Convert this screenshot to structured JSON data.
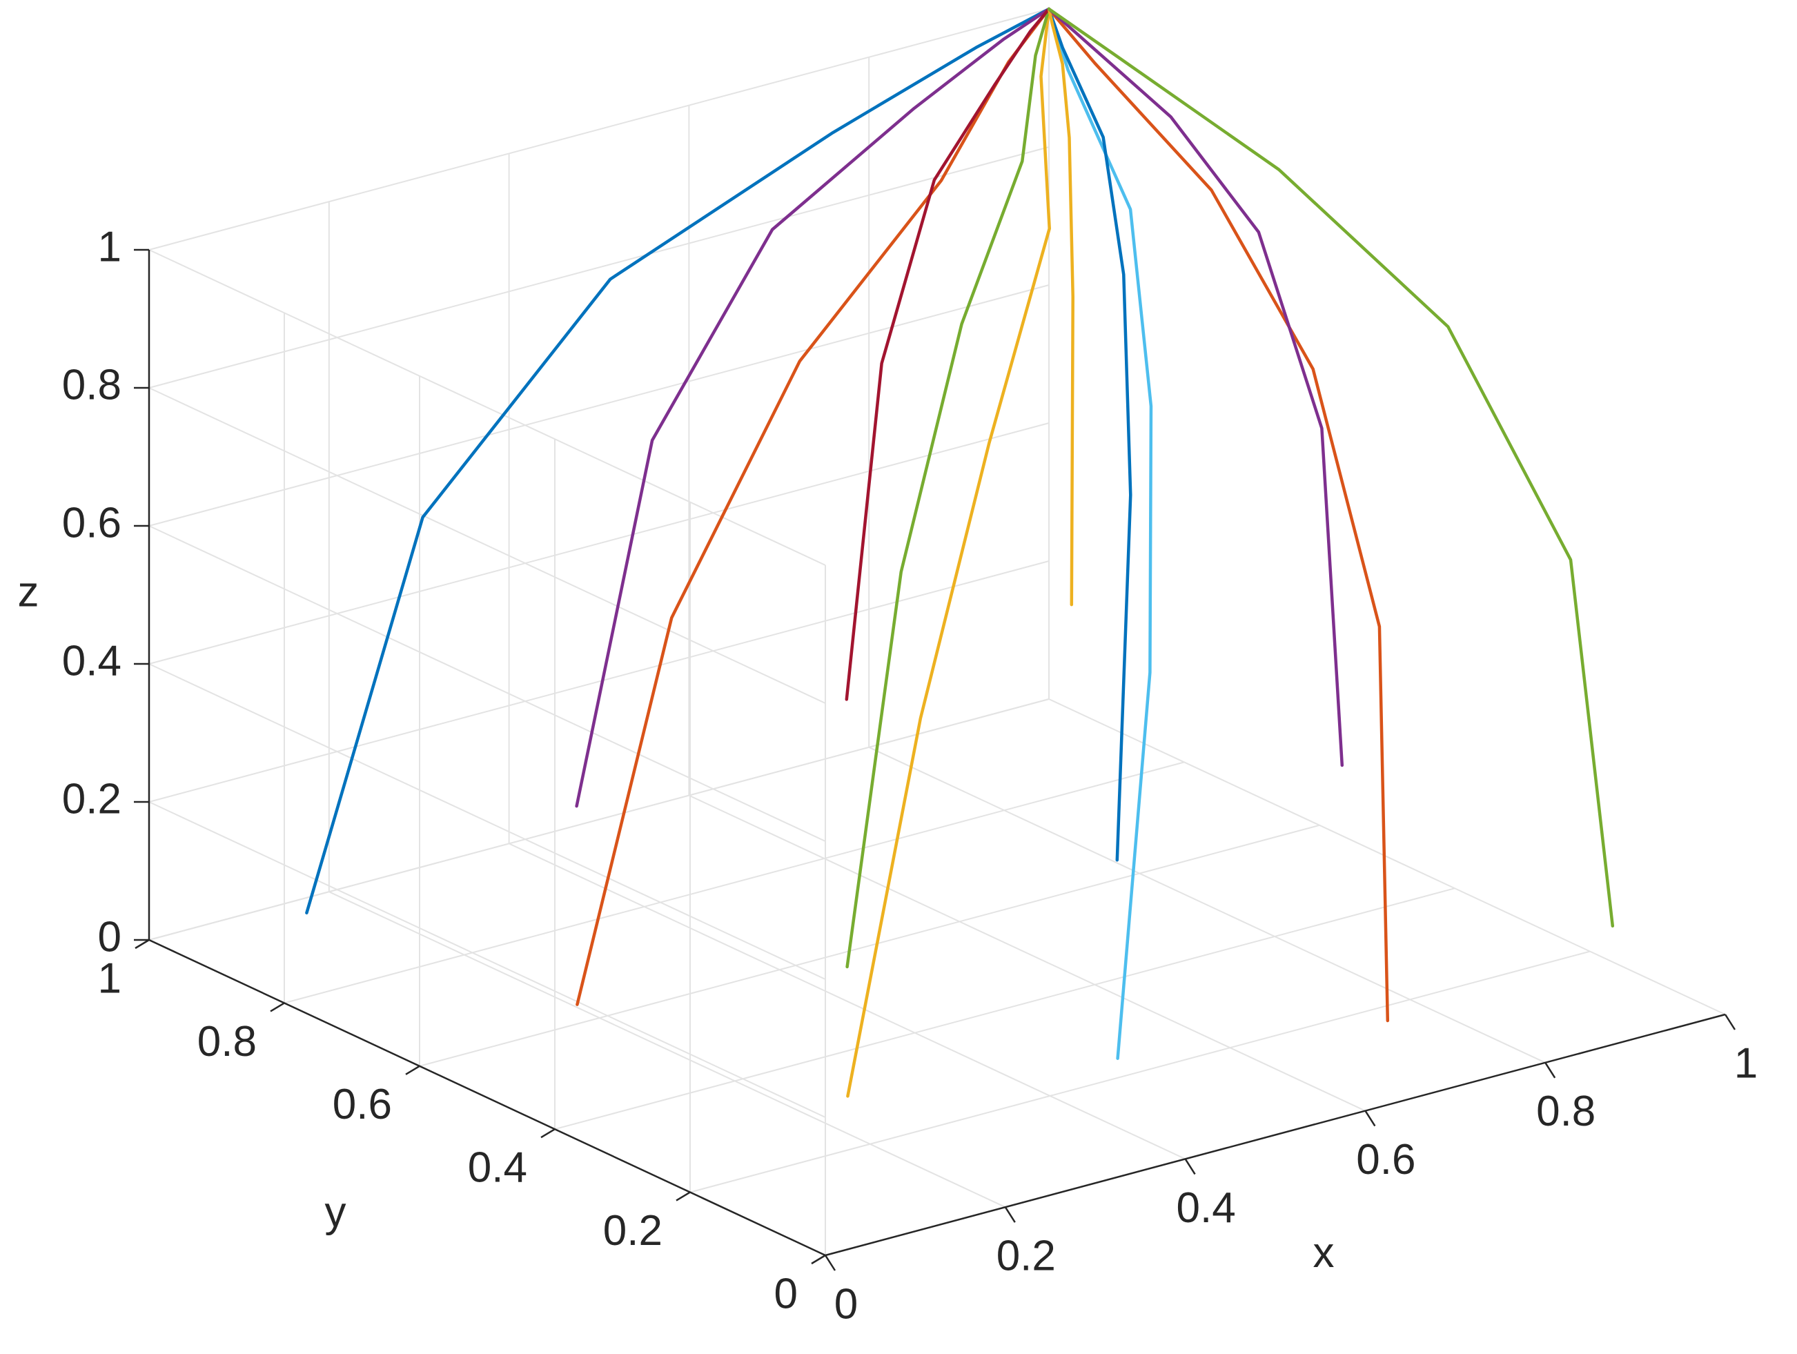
{
  "chart_data": {
    "type": "line3d",
    "x_label": "x",
    "y_label": "y",
    "z_label": "z",
    "xlim": [
      0,
      1
    ],
    "ylim": [
      0,
      1
    ],
    "zlim": [
      0,
      1
    ],
    "xticks": [
      0,
      0.2,
      0.4,
      0.6,
      0.8,
      1
    ],
    "yticks": [
      0,
      0.2,
      0.4,
      0.6,
      0.8,
      1
    ],
    "zticks": [
      0,
      0.2,
      0.4,
      0.6,
      0.8,
      1
    ],
    "grid": true,
    "series": [
      {
        "color": "#0072BD",
        "x": [
          0.1,
          0.235,
          0.46,
          0.73,
          0.91,
          1
        ],
        "y": [
          0.9,
          0.908,
          0.93,
          0.96,
          0.988,
          1
        ],
        "z": [
          0.05,
          0.5725,
          0.829,
          0.9335,
          0.981,
          1
        ]
      },
      {
        "color": "#D95319",
        "x": [
          0.1,
          0.235,
          0.46,
          0.73,
          0.91,
          1
        ],
        "y": [
          0.5,
          0.54,
          0.65,
          0.8,
          0.94,
          1
        ],
        "z": [
          0.1,
          0.595,
          0.838,
          0.937,
          0.982,
          1
        ]
      },
      {
        "color": "#EDB120",
        "x": [
          0.1,
          0.235,
          0.46,
          0.73,
          0.91,
          1
        ],
        "y": [
          0.1,
          0.172,
          0.37,
          0.64,
          0.892,
          1
        ],
        "z": [
          0.15,
          0.6175,
          0.847,
          0.9405,
          0.983,
          1
        ]
      },
      {
        "color": "#7E2F8E",
        "x": [
          0.4,
          0.49,
          0.64,
          0.82,
          0.94,
          1
        ],
        "y": [
          0.9,
          0.908,
          0.93,
          0.96,
          0.988,
          1
        ],
        "z": [
          0.1,
          0.595,
          0.838,
          0.937,
          0.982,
          1
        ]
      },
      {
        "color": "#77AC30",
        "x": [
          0.4,
          0.49,
          0.64,
          0.82,
          0.94,
          1
        ],
        "y": [
          0.5,
          0.54,
          0.65,
          0.8,
          0.94,
          1
        ],
        "z": [
          0.05,
          0.5725,
          0.829,
          0.9335,
          0.981,
          1
        ]
      },
      {
        "color": "#4DBEEE",
        "x": [
          0.4,
          0.49,
          0.64,
          0.82,
          0.94,
          1
        ],
        "y": [
          0.1,
          0.172,
          0.37,
          0.64,
          0.892,
          1
        ],
        "z": [
          0.1,
          0.595,
          0.838,
          0.937,
          0.982,
          1
        ]
      },
      {
        "color": "#A2142F",
        "x": [
          0.7,
          0.745,
          0.82,
          0.91,
          0.97,
          1
        ],
        "y": [
          0.9,
          0.908,
          0.93,
          0.96,
          0.988,
          1
        ],
        "z": [
          0.15,
          0.6175,
          0.847,
          0.9405,
          0.983,
          1
        ]
      },
      {
        "color": "#0072BD",
        "x": [
          0.7,
          0.745,
          0.82,
          0.91,
          0.97,
          1
        ],
        "y": [
          0.5,
          0.54,
          0.65,
          0.8,
          0.94,
          1
        ],
        "z": [
          0.1,
          0.595,
          0.838,
          0.937,
          0.982,
          1
        ]
      },
      {
        "color": "#D95319",
        "x": [
          0.7,
          0.745,
          0.82,
          0.91,
          0.97,
          1
        ],
        "y": [
          0.1,
          0.172,
          0.37,
          0.64,
          0.892,
          1
        ],
        "z": [
          0.05,
          0.5725,
          0.829,
          0.9335,
          0.981,
          1
        ]
      },
      {
        "color": "#EDB120",
        "x": [
          0.95,
          0.9575,
          0.97,
          0.985,
          0.995,
          1
        ],
        "y": [
          0.9,
          0.908,
          0.93,
          0.96,
          0.988,
          1
        ],
        "z": [
          0.2,
          0.64,
          0.856,
          0.944,
          0.984,
          1
        ]
      },
      {
        "color": "#7E2F8E",
        "x": [
          0.95,
          0.9575,
          0.97,
          0.985,
          0.995,
          1
        ],
        "y": [
          0.5,
          0.54,
          0.65,
          0.8,
          0.94,
          1
        ],
        "z": [
          0.15,
          0.6175,
          0.847,
          0.9405,
          0.983,
          1
        ]
      },
      {
        "color": "#77AC30",
        "x": [
          0.95,
          0.9575,
          0.97,
          0.985,
          0.995,
          1
        ],
        "y": [
          0.1,
          0.172,
          0.37,
          0.64,
          0.892,
          1
        ],
        "z": [
          0.1,
          0.595,
          0.838,
          0.937,
          0.982,
          1
        ]
      }
    ]
  }
}
